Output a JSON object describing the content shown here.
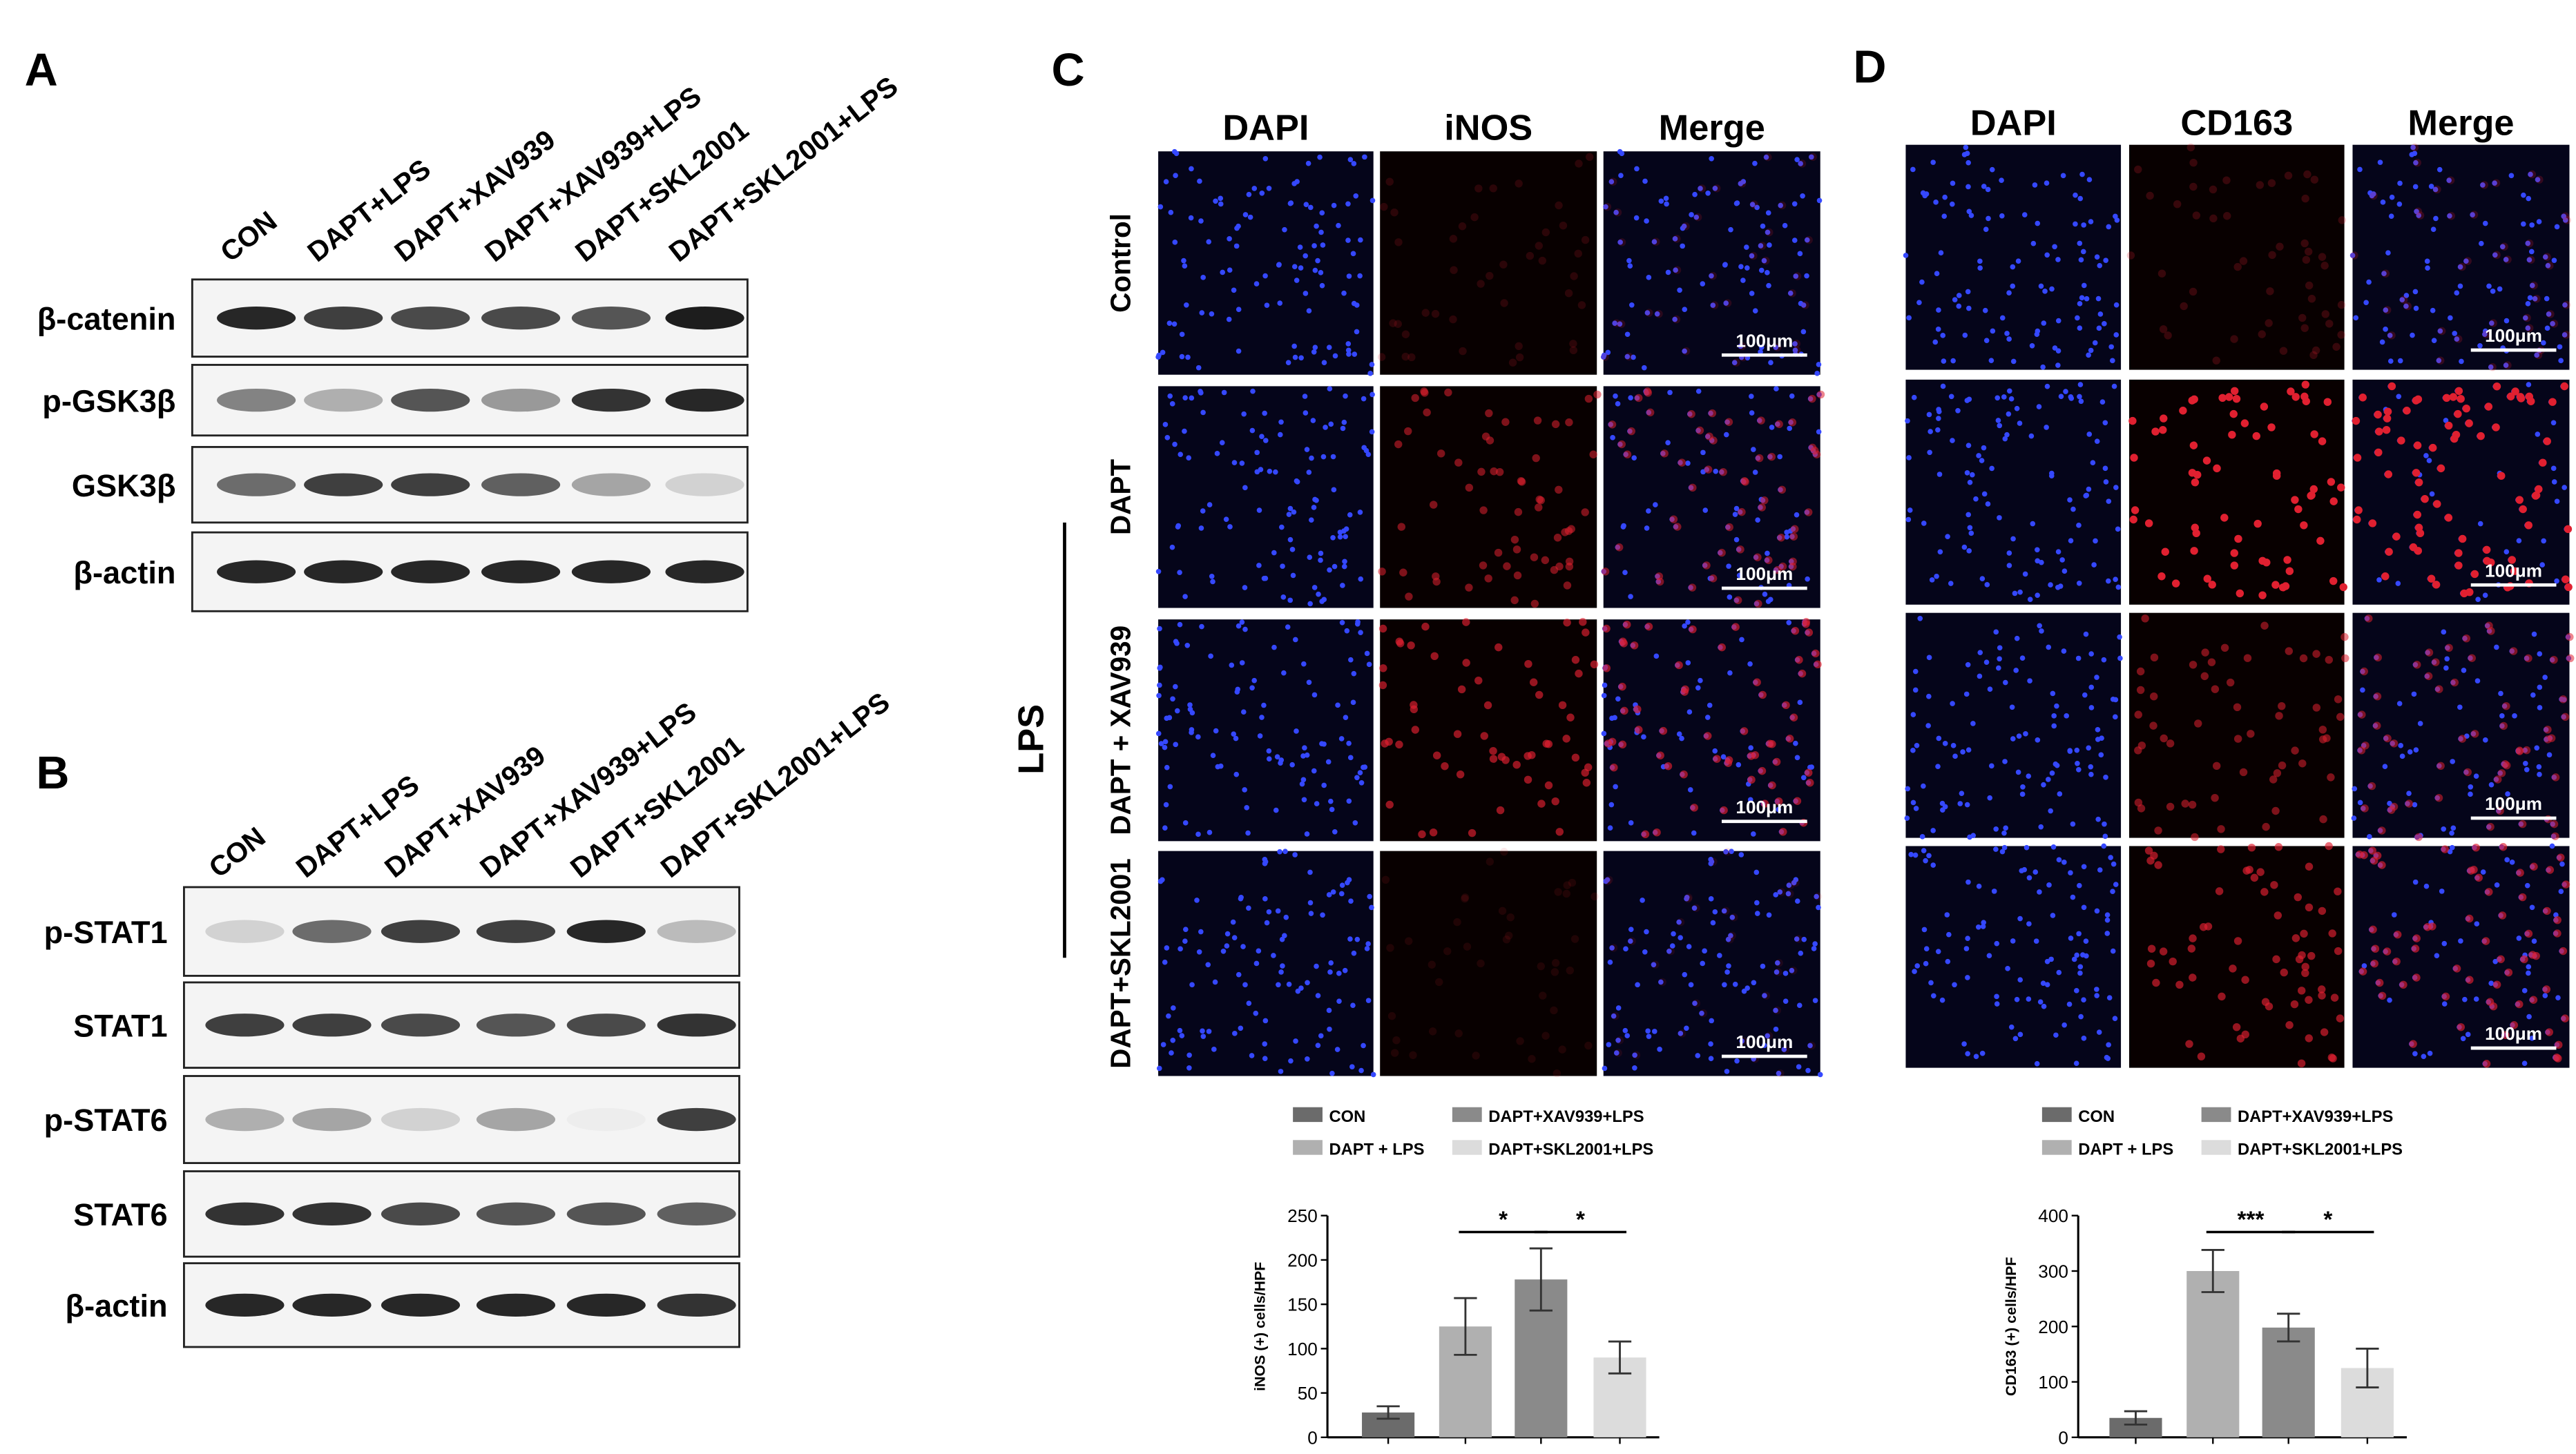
{
  "panels": [
    {
      "label": "A",
      "lanes": [
        "CON",
        "DAPT+LPS",
        "DAPT+XAV939",
        "DAPT+XAV939+LPS",
        "DAPT+SKL2001",
        "DAPT+SKL2001+LPS"
      ],
      "blots": [
        "β-catenin",
        "p-GSK3β",
        "GSK3β",
        "β-actin"
      ]
    },
    {
      "label": "B",
      "lanes": [
        "CON",
        "DAPT+LPS",
        "DAPT+XAV939",
        "DAPT+XAV939+LPS",
        "DAPT+SKL2001",
        "DAPT+SKL2001+LPS"
      ],
      "blots": [
        "p-STAT1",
        "STAT1",
        "p-STAT6",
        "STAT6",
        "β-actin"
      ]
    },
    {
      "label": "C",
      "columns": [
        "DAPI",
        "iNOS",
        "Merge"
      ],
      "rows": [
        "Control",
        "DAPT",
        "DAPT + XAV939",
        "DAPT+SKL2001"
      ],
      "group": "LPS",
      "scale_bar": "100μm"
    },
    {
      "label": "D",
      "columns": [
        "DAPI",
        "CD163",
        "Merge"
      ],
      "scale_bar": "100μm"
    }
  ],
  "chart_data": [
    {
      "type": "bar",
      "y_label": "iNOS (+) cells/HPF",
      "categories": [
        null
      ],
      "ylim": [
        0,
        250
      ],
      "yticks": [
        0,
        50,
        100,
        150,
        200,
        250
      ],
      "annotations": [
        "*",
        "*"
      ],
      "series": [
        {
          "name": "CON",
          "color": "#6b6b6b",
          "values": [
            28
          ],
          "errors": [
            7
          ]
        },
        {
          "name": "DAPT + LPS",
          "color": "#b0b0b0",
          "values": [
            125
          ],
          "errors": [
            32
          ]
        },
        {
          "name": "DAPT+XAV939+LPS",
          "color": "#8a8a8a",
          "values": [
            178
          ],
          "errors": [
            35
          ]
        },
        {
          "name": "DAPT+SKL2001+LPS",
          "color": "#dcdcdc",
          "values": [
            90
          ],
          "errors": [
            18
          ]
        }
      ]
    },
    {
      "type": "bar",
      "y_label": "CD163 (+) cells/HPF",
      "categories": [
        null
      ],
      "ylim": [
        0,
        400
      ],
      "yticks": [
        0,
        100,
        200,
        300,
        400
      ],
      "annotations": [
        "***",
        "*"
      ],
      "series": [
        {
          "name": "CON",
          "color": "#6b6b6b",
          "values": [
            35
          ],
          "errors": [
            12
          ]
        },
        {
          "name": "DAPT + LPS",
          "color": "#b0b0b0",
          "values": [
            300
          ],
          "errors": [
            38
          ]
        },
        {
          "name": "DAPT+XAV939+LPS",
          "color": "#8a8a8a",
          "values": [
            198
          ],
          "errors": [
            25
          ]
        },
        {
          "name": "DAPT+SKL2001+LPS",
          "color": "#dcdcdc",
          "values": [
            125
          ],
          "errors": [
            35
          ]
        }
      ]
    }
  ]
}
